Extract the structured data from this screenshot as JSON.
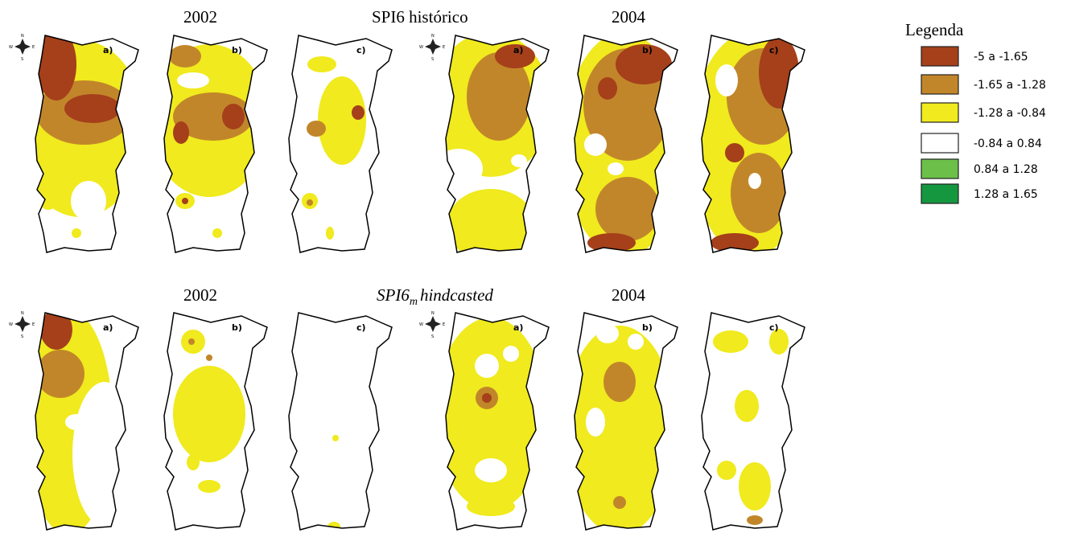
{
  "rows": [
    {
      "title_left": "2002",
      "title_center": "SPI6 histórico",
      "title_right": "2004",
      "panels": [
        {
          "label": "a)"
        },
        {
          "label": "b)"
        },
        {
          "label": "c)"
        },
        {
          "label": "a)"
        },
        {
          "label": "b)"
        },
        {
          "label": "c)"
        }
      ]
    },
    {
      "title_left": "2002",
      "title_center": {
        "main": "SPI6",
        "sub": "m",
        "rest": "hindcasted"
      },
      "title_right": "2004",
      "panels": [
        {
          "label": "a)"
        },
        {
          "label": "b)"
        },
        {
          "label": "c)"
        },
        {
          "label": "a)"
        },
        {
          "label": "b)"
        },
        {
          "label": "c)"
        }
      ]
    }
  ],
  "compass": {
    "n": "N",
    "w": "W",
    "e": "E",
    "s": "S"
  },
  "legend": {
    "title": "Legenda",
    "items": [
      {
        "label": "-5 a -1.65",
        "color": "#a5401b"
      },
      {
        "label": "-1.65 a -1.28",
        "color": "#c2862a"
      },
      {
        "label": "-1.28 a -0.84",
        "color": "#f0ea1e"
      },
      {
        "label": "-0.84 a 0.84",
        "color": "#ffffff"
      },
      {
        "label": "0.84 a 1.28",
        "color": "#6cc04a"
      },
      {
        "label": "1.28 a 1.65",
        "color": "#15973f"
      }
    ]
  }
}
